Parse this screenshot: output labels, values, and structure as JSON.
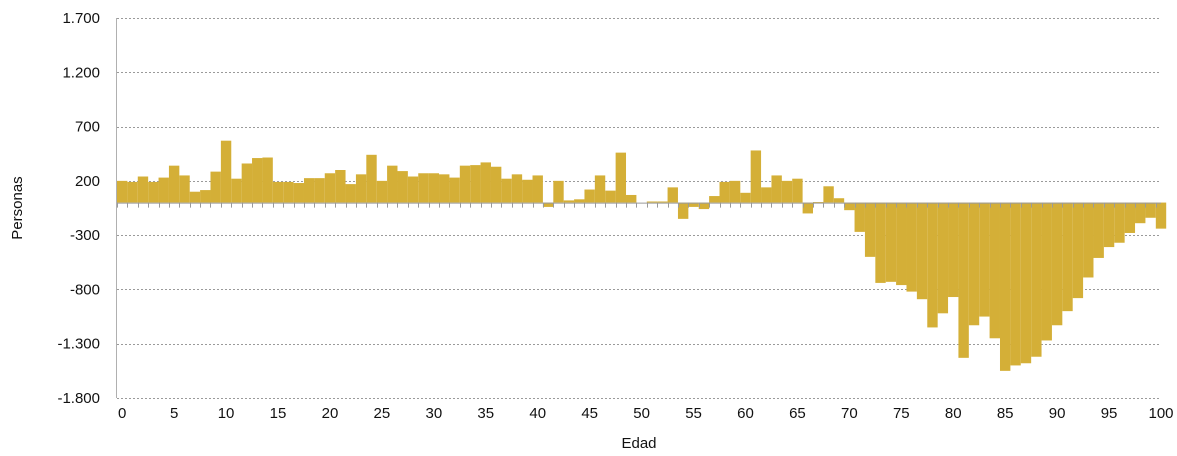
{
  "chart_data": {
    "type": "bar",
    "xlabel": "Edad",
    "ylabel": "Personas",
    "ylim": [
      -1800,
      1700
    ],
    "y_ticks": [
      1700,
      1200,
      700,
      200,
      -300,
      -800,
      -1300,
      -1800
    ],
    "y_tick_labels": [
      "1.700",
      "1.200",
      "700",
      "200",
      "-300",
      "-800",
      "-1.300",
      "-1.800"
    ],
    "x_tick_labels": [
      "0",
      "5",
      "10",
      "15",
      "20",
      "25",
      "30",
      "35",
      "40",
      "45",
      "50",
      "55",
      "60",
      "65",
      "70",
      "75",
      "80",
      "85",
      "90",
      "95",
      "100"
    ],
    "grid": "horizontal dashed",
    "legend": "none",
    "bar_color": "#d4af37",
    "categories": [
      0,
      1,
      2,
      3,
      4,
      5,
      6,
      7,
      8,
      9,
      10,
      11,
      12,
      13,
      14,
      15,
      16,
      17,
      18,
      19,
      20,
      21,
      22,
      23,
      24,
      25,
      26,
      27,
      28,
      29,
      30,
      31,
      32,
      33,
      34,
      35,
      36,
      37,
      38,
      39,
      40,
      41,
      42,
      43,
      44,
      45,
      46,
      47,
      48,
      49,
      50,
      51,
      52,
      53,
      54,
      55,
      56,
      57,
      58,
      59,
      60,
      61,
      62,
      63,
      64,
      65,
      66,
      67,
      68,
      69,
      70,
      71,
      72,
      73,
      74,
      75,
      76,
      77,
      78,
      79,
      80,
      81,
      82,
      83,
      84,
      85,
      86,
      87,
      88,
      89,
      90,
      91,
      92,
      93,
      94,
      95,
      96,
      97,
      98,
      99,
      100
    ],
    "values": [
      200,
      190,
      240,
      190,
      230,
      340,
      250,
      100,
      115,
      285,
      570,
      220,
      360,
      410,
      415,
      190,
      190,
      180,
      225,
      225,
      270,
      300,
      170,
      260,
      440,
      200,
      340,
      290,
      240,
      270,
      270,
      260,
      230,
      340,
      345,
      370,
      330,
      220,
      260,
      210,
      250,
      -40,
      200,
      20,
      30,
      120,
      250,
      110,
      460,
      70,
      0,
      10,
      10,
      140,
      -150,
      -40,
      -60,
      60,
      190,
      200,
      90,
      480,
      140,
      250,
      200,
      220,
      -100,
      5,
      150,
      40,
      -70,
      -270,
      -500,
      -740,
      -730,
      -760,
      -820,
      -890,
      -1150,
      -1020,
      -870,
      -1430,
      -1130,
      -1050,
      -1250,
      -1550,
      -1500,
      -1480,
      -1420,
      -1270,
      -1130,
      -1000,
      -880,
      -690,
      -510,
      -410,
      -370,
      -280,
      -190,
      -140,
      -240
    ]
  }
}
